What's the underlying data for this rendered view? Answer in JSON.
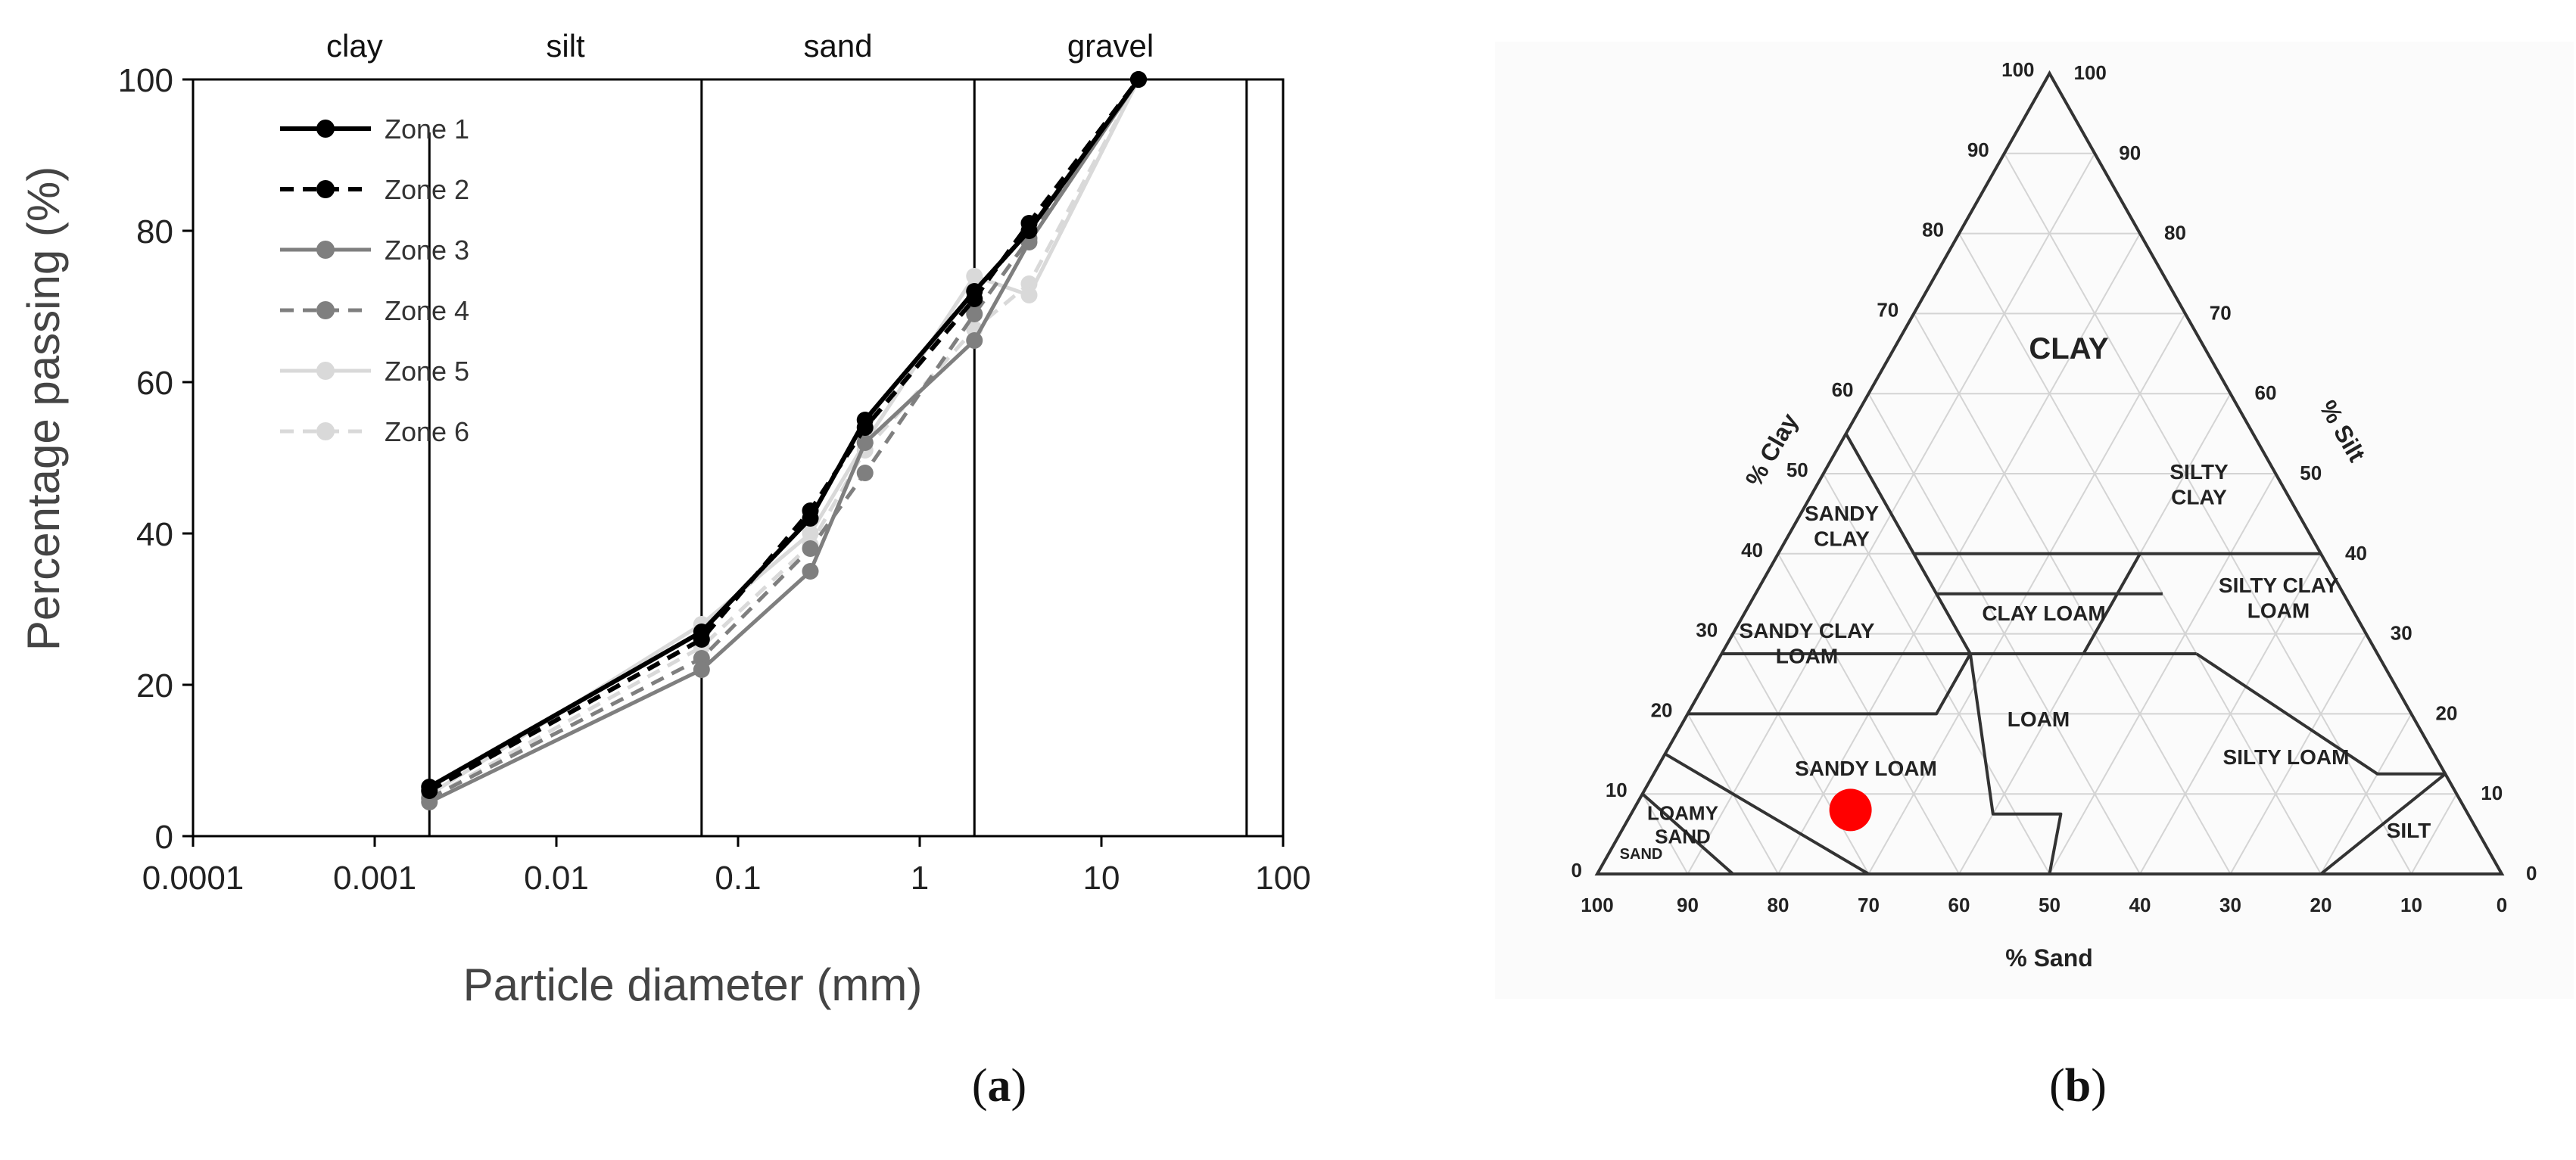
{
  "panel_a": {
    "caption_open": "(",
    "caption_letter": "a",
    "caption_close": ")"
  },
  "panel_b": {
    "caption_open": "(",
    "caption_letter": "b",
    "caption_close": ")"
  },
  "chart_data": [
    {
      "type": "line",
      "title": "",
      "xlabel": "Particle diameter (mm)",
      "ylabel": "Percentage passing (%)",
      "x_scale": "log",
      "xlim": [
        0.0001,
        100
      ],
      "ylim": [
        0,
        100
      ],
      "x_tick_labels": [
        "0.0001",
        "0.001",
        "0.01",
        "0.1",
        "1",
        "10",
        "100"
      ],
      "y_tick_labels": [
        "0",
        "20",
        "40",
        "60",
        "80",
        "100"
      ],
      "grid": false,
      "legend_position": "top-left",
      "size_classes": [
        {
          "label": "clay"
        },
        {
          "label": "silt"
        },
        {
          "label": "sand"
        },
        {
          "label": "gravel"
        }
      ],
      "class_boundaries_mm": [
        0.002,
        0.063,
        2,
        63
      ],
      "x": [
        0.002,
        0.063,
        0.25,
        0.5,
        2,
        4,
        16
      ],
      "series": [
        {
          "name": "Zone 1",
          "values": [
            6.5,
            27,
            42,
            55,
            72,
            80,
            100
          ],
          "color": "#000000",
          "style": "solid"
        },
        {
          "name": "Zone 2",
          "values": [
            6,
            26,
            43,
            54,
            71,
            81,
            100
          ],
          "color": "#000000",
          "style": "dashed"
        },
        {
          "name": "Zone 3",
          "values": [
            4.5,
            22,
            35,
            52,
            65.5,
            78.5,
            100
          ],
          "color": "#7f7f7f",
          "style": "solid"
        },
        {
          "name": "Zone 4",
          "values": [
            5,
            23.5,
            38,
            48,
            69,
            79,
            100
          ],
          "color": "#7f7f7f",
          "style": "dashed"
        },
        {
          "name": "Zone 5",
          "values": [
            5.5,
            28,
            40,
            52,
            74,
            71.5,
            100
          ],
          "color": "#d9d9d9",
          "style": "solid"
        },
        {
          "name": "Zone 6",
          "values": [
            5,
            25,
            38.5,
            51,
            67,
            73,
            100
          ],
          "color": "#d9d9d9",
          "style": "dashed"
        }
      ]
    },
    {
      "type": "ternary",
      "title": "",
      "axes": [
        {
          "label": "% Clay",
          "side": "left"
        },
        {
          "label": "% Silt",
          "side": "right"
        },
        {
          "label": "% Sand",
          "side": "bottom"
        }
      ],
      "clay_tick_labels": [
        "0",
        "10",
        "20",
        "30",
        "40",
        "50",
        "60",
        "70",
        "80",
        "90",
        "100"
      ],
      "silt_tick_labels": [
        "0",
        "10",
        "20",
        "30",
        "40",
        "50",
        "60",
        "70",
        "80",
        "90",
        "100"
      ],
      "sand_tick_labels": [
        "100",
        "90",
        "80",
        "70",
        "60",
        "50",
        "40",
        "30",
        "20",
        "10",
        "0"
      ],
      "regions": [
        {
          "label": "CLAY",
          "label_lines": [
            "CLAY"
          ]
        },
        {
          "label": "SANDY CLAY",
          "label_lines": [
            "SANDY",
            "CLAY"
          ]
        },
        {
          "label": "SILTY CLAY",
          "label_lines": [
            "SILTY",
            "CLAY"
          ]
        },
        {
          "label": "SANDY CLAY LOAM",
          "label_lines": [
            "SANDY CLAY",
            "LOAM"
          ]
        },
        {
          "label": "CLAY LOAM",
          "label_lines": [
            "CLAY LOAM"
          ]
        },
        {
          "label": "SILTY CLAY LOAM",
          "label_lines": [
            "SILTY CLAY",
            "LOAM"
          ]
        },
        {
          "label": "LOAM",
          "label_lines": [
            "LOAM"
          ]
        },
        {
          "label": "SANDY LOAM",
          "label_lines": [
            "SANDY LOAM"
          ]
        },
        {
          "label": "SILTY LOAM",
          "label_lines": [
            "SILTY LOAM"
          ]
        },
        {
          "label": "LOAMY SAND",
          "label_lines": [
            "LOAMY",
            "SAND"
          ]
        },
        {
          "label": "SAND",
          "label_lines": [
            "SAND"
          ]
        },
        {
          "label": "SILT",
          "label_lines": [
            "SILT"
          ]
        }
      ],
      "points": [
        {
          "clay": 8,
          "silt": 24,
          "sand": 68,
          "color": "#ff0000"
        }
      ]
    }
  ]
}
